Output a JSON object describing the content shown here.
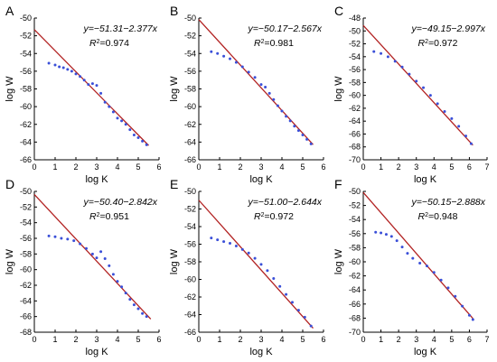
{
  "colors": {
    "fit_line": "#b22222",
    "data_points": "#3a4fd8",
    "axis": "#000000"
  },
  "chart_data": [
    {
      "panel": "A",
      "type": "scatter",
      "xlabel": "log K",
      "ylabel": "log W",
      "xlim": [
        0,
        6
      ],
      "ylim": [
        -66,
        -50
      ],
      "xticks": [
        0,
        1,
        2,
        3,
        4,
        5,
        6
      ],
      "yticks": [
        -66,
        -64,
        -62,
        -60,
        -58,
        -56,
        -54,
        -52,
        -50
      ],
      "equation": "y=−51.31−2.377x",
      "r2_prefix": "R",
      "r2_value": "=0.974",
      "fit": {
        "intercept": -51.31,
        "slope": -2.377,
        "x_range": [
          0,
          5.5
        ]
      },
      "points": [
        [
          0.7,
          -55.1
        ],
        [
          1.0,
          -55.3
        ],
        [
          1.2,
          -55.5
        ],
        [
          1.4,
          -55.6
        ],
        [
          1.6,
          -55.8
        ],
        [
          1.8,
          -56.0
        ],
        [
          2.0,
          -56.3
        ],
        [
          2.2,
          -56.6
        ],
        [
          2.4,
          -57.0
        ],
        [
          2.6,
          -57.5
        ],
        [
          2.8,
          -57.4
        ],
        [
          3.0,
          -57.6
        ],
        [
          3.2,
          -58.5
        ],
        [
          3.4,
          -59.5
        ],
        [
          3.6,
          -60.0
        ],
        [
          3.8,
          -60.6
        ],
        [
          4.0,
          -61.3
        ],
        [
          4.2,
          -61.6
        ],
        [
          4.4,
          -62.0
        ],
        [
          4.6,
          -62.6
        ],
        [
          4.8,
          -63.2
        ],
        [
          5.0,
          -63.5
        ],
        [
          5.2,
          -63.9
        ],
        [
          5.4,
          -64.3
        ]
      ]
    },
    {
      "panel": "B",
      "type": "scatter",
      "xlabel": "log K",
      "ylabel": "log W",
      "xlim": [
        0,
        6
      ],
      "ylim": [
        -66,
        -50
      ],
      "xticks": [
        0,
        1,
        2,
        3,
        4,
        5,
        6
      ],
      "yticks": [
        -66,
        -64,
        -62,
        -60,
        -58,
        -56,
        -54,
        -52,
        -50
      ],
      "equation": "y=−50.17−2.567x",
      "r2_prefix": "R",
      "r2_value": "=0.981",
      "fit": {
        "intercept": -50.17,
        "slope": -2.567,
        "x_range": [
          0,
          5.5
        ]
      },
      "points": [
        [
          0.6,
          -53.8
        ],
        [
          0.9,
          -54.0
        ],
        [
          1.2,
          -54.3
        ],
        [
          1.5,
          -54.6
        ],
        [
          1.8,
          -55.0
        ],
        [
          2.1,
          -55.5
        ],
        [
          2.4,
          -56.1
        ],
        [
          2.7,
          -56.7
        ],
        [
          3.0,
          -57.5
        ],
        [
          3.2,
          -57.8
        ],
        [
          3.4,
          -58.5
        ],
        [
          3.6,
          -59.2
        ],
        [
          3.8,
          -59.9
        ],
        [
          4.0,
          -60.5
        ],
        [
          4.2,
          -61.1
        ],
        [
          4.4,
          -61.6
        ],
        [
          4.6,
          -62.2
        ],
        [
          4.8,
          -62.7
        ],
        [
          5.0,
          -63.2
        ],
        [
          5.2,
          -63.7
        ],
        [
          5.4,
          -64.2
        ]
      ]
    },
    {
      "panel": "C",
      "type": "scatter",
      "xlabel": "log K",
      "ylabel": "log W",
      "xlim": [
        0,
        7
      ],
      "ylim": [
        -70,
        -48
      ],
      "xticks": [
        0,
        1,
        2,
        3,
        4,
        5,
        6,
        7
      ],
      "yticks": [
        -70,
        -68,
        -66,
        -64,
        -62,
        -60,
        -58,
        -56,
        -54,
        -52,
        -50,
        -48
      ],
      "equation": "y=−49.15−2.997x",
      "r2_prefix": "R",
      "r2_value": "=0.972",
      "fit": {
        "intercept": -49.15,
        "slope": -2.997,
        "x_range": [
          0,
          6.2
        ]
      },
      "points": [
        [
          0.6,
          -53.2
        ],
        [
          1.0,
          -53.5
        ],
        [
          1.4,
          -54.0
        ],
        [
          1.8,
          -54.7
        ],
        [
          2.2,
          -55.6
        ],
        [
          2.6,
          -56.7
        ],
        [
          3.0,
          -57.8
        ],
        [
          3.4,
          -58.8
        ],
        [
          3.8,
          -60.0
        ],
        [
          4.2,
          -61.3
        ],
        [
          4.6,
          -62.5
        ],
        [
          5.0,
          -63.6
        ],
        [
          5.4,
          -64.8
        ],
        [
          5.8,
          -66.3
        ],
        [
          6.1,
          -67.5
        ]
      ]
    },
    {
      "panel": "D",
      "type": "scatter",
      "xlabel": "log K",
      "ylabel": "log W",
      "xlim": [
        0,
        6
      ],
      "ylim": [
        -68,
        -50
      ],
      "xticks": [
        0,
        1,
        2,
        3,
        4,
        5,
        6
      ],
      "yticks": [
        -68,
        -66,
        -64,
        -62,
        -60,
        -58,
        -56,
        -54,
        -52,
        -50
      ],
      "equation": "y=−50.40−2.842x",
      "r2_prefix": "R",
      "r2_value": "=0.951",
      "fit": {
        "intercept": -50.4,
        "slope": -2.842,
        "x_range": [
          0,
          5.6
        ]
      },
      "points": [
        [
          0.7,
          -55.7
        ],
        [
          1.0,
          -55.8
        ],
        [
          1.3,
          -56.0
        ],
        [
          1.6,
          -56.1
        ],
        [
          1.9,
          -56.3
        ],
        [
          2.2,
          -56.7
        ],
        [
          2.5,
          -57.3
        ],
        [
          2.8,
          -58.0
        ],
        [
          3.0,
          -58.5
        ],
        [
          3.2,
          -57.7
        ],
        [
          3.4,
          -58.6
        ],
        [
          3.6,
          -59.5
        ],
        [
          3.8,
          -60.6
        ],
        [
          4.0,
          -61.5
        ],
        [
          4.2,
          -62.2
        ],
        [
          4.4,
          -63.0
        ],
        [
          4.6,
          -63.8
        ],
        [
          4.8,
          -64.5
        ],
        [
          5.0,
          -65.0
        ],
        [
          5.2,
          -65.6
        ],
        [
          5.4,
          -66.0
        ]
      ]
    },
    {
      "panel": "E",
      "type": "scatter",
      "xlabel": "log K",
      "ylabel": "log W",
      "xlim": [
        0,
        6
      ],
      "ylim": [
        -66,
        -50
      ],
      "xticks": [
        0,
        1,
        2,
        3,
        4,
        5,
        6
      ],
      "yticks": [
        -66,
        -64,
        -62,
        -60,
        -58,
        -56,
        -54,
        -52,
        -50
      ],
      "equation": "y=−51.00−2.644x",
      "r2_prefix": "R",
      "r2_value": "=0.972",
      "fit": {
        "intercept": -51.0,
        "slope": -2.644,
        "x_range": [
          0,
          5.5
        ]
      },
      "points": [
        [
          0.6,
          -55.3
        ],
        [
          0.9,
          -55.5
        ],
        [
          1.2,
          -55.7
        ],
        [
          1.5,
          -55.9
        ],
        [
          1.8,
          -56.2
        ],
        [
          2.1,
          -56.6
        ],
        [
          2.4,
          -57.0
        ],
        [
          2.7,
          -57.6
        ],
        [
          3.0,
          -58.3
        ],
        [
          3.3,
          -59.0
        ],
        [
          3.6,
          -59.9
        ],
        [
          3.9,
          -60.8
        ],
        [
          4.2,
          -61.7
        ],
        [
          4.5,
          -62.6
        ],
        [
          4.8,
          -63.5
        ],
        [
          5.1,
          -64.3
        ],
        [
          5.4,
          -65.3
        ]
      ]
    },
    {
      "panel": "F",
      "type": "scatter",
      "xlabel": "log K",
      "ylabel": "log W",
      "xlim": [
        0,
        7
      ],
      "ylim": [
        -70,
        -50
      ],
      "xticks": [
        0,
        1,
        2,
        3,
        4,
        5,
        6,
        7
      ],
      "yticks": [
        -70,
        -68,
        -66,
        -64,
        -62,
        -60,
        -58,
        -56,
        -54,
        -52,
        -50
      ],
      "equation": "y=−50.15−2.888x",
      "r2_prefix": "R",
      "r2_value": "=0.948",
      "fit": {
        "intercept": -50.15,
        "slope": -2.888,
        "x_range": [
          0,
          6.2
        ]
      },
      "points": [
        [
          0.7,
          -55.8
        ],
        [
          1.0,
          -55.9
        ],
        [
          1.3,
          -56.1
        ],
        [
          1.6,
          -56.4
        ],
        [
          1.9,
          -57.0
        ],
        [
          2.2,
          -57.9
        ],
        [
          2.5,
          -58.8
        ],
        [
          2.8,
          -59.5
        ],
        [
          3.2,
          -60.2
        ],
        [
          3.6,
          -60.6
        ],
        [
          4.0,
          -61.5
        ],
        [
          4.4,
          -62.6
        ],
        [
          4.8,
          -63.7
        ],
        [
          5.2,
          -64.9
        ],
        [
          5.6,
          -66.3
        ],
        [
          6.0,
          -67.6
        ],
        [
          6.2,
          -68.2
        ]
      ]
    }
  ]
}
